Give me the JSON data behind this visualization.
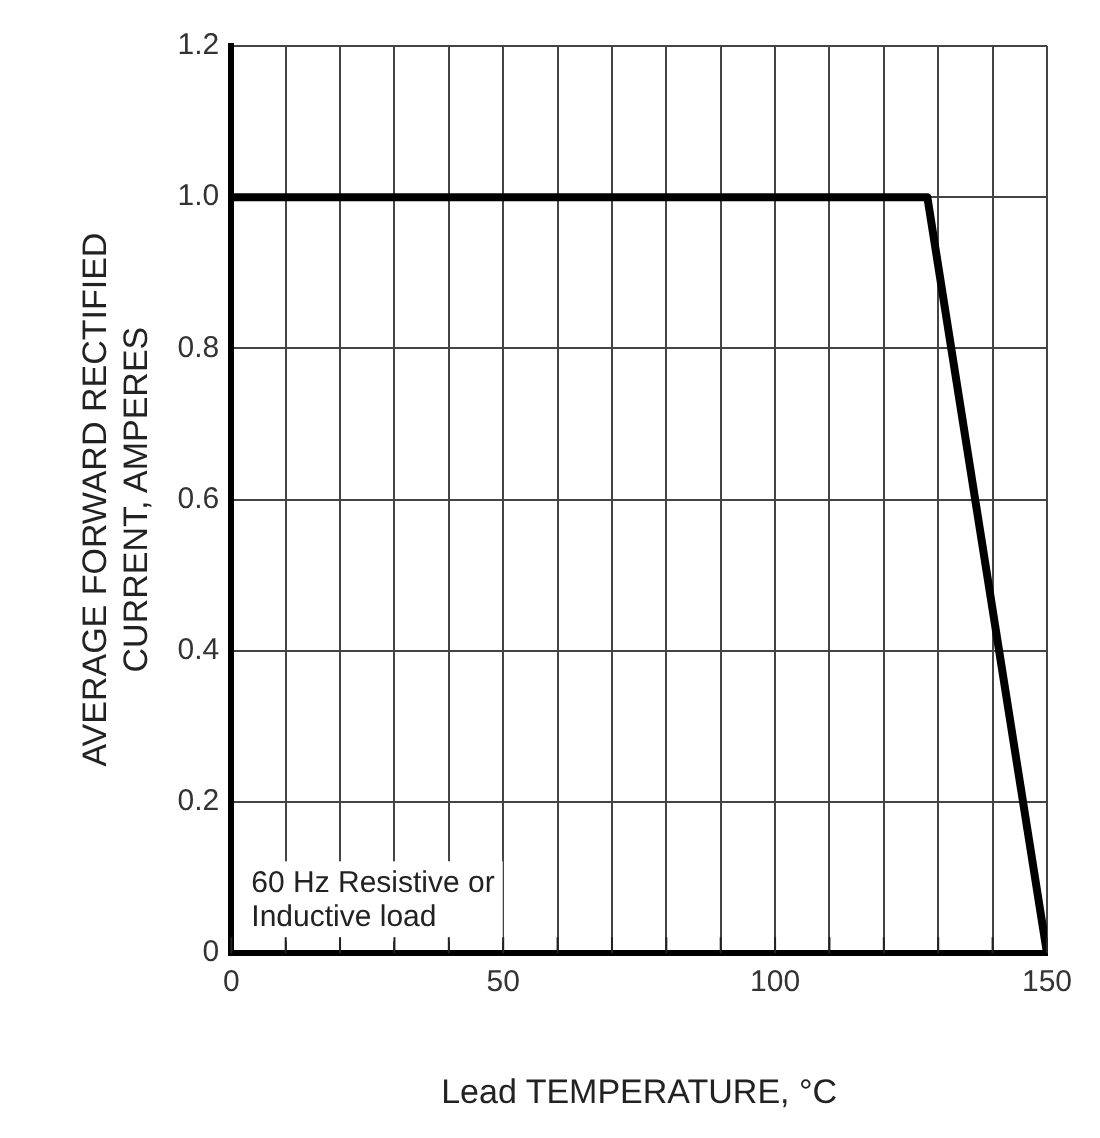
{
  "chart_data": {
    "type": "line",
    "xlabel": "Lead TEMPERATURE, °C",
    "ylabel": "AVERAGE FORWARD RECTIFIED\nCURRENT, AMPERES",
    "x": [
      0,
      128,
      150
    ],
    "series": [
      {
        "color": "#000000",
        "values": [
          1,
          1,
          0
        ]
      }
    ],
    "xlim": [
      0,
      150
    ],
    "ylim": [
      0,
      1.2
    ],
    "xticks": [
      0,
      {
        "value": 10,
        "label": null
      },
      {
        "value": 20,
        "label": null
      },
      {
        "value": 30,
        "label": null
      },
      {
        "value": 40,
        "label": null
      },
      50,
      {
        "value": 60,
        "label": null
      },
      {
        "value": 70,
        "label": null
      },
      {
        "value": 80,
        "label": null
      },
      {
        "value": 90,
        "label": null
      },
      100,
      {
        "value": 110,
        "label": null
      },
      {
        "value": 120,
        "label": null
      },
      {
        "value": 130,
        "label": null
      },
      {
        "value": 140,
        "label": null
      },
      150
    ],
    "yticks": [
      0,
      0.2,
      0.4,
      0.6,
      0.8,
      {
        "value": 1,
        "label": "1.0"
      },
      1.2
    ],
    "grid": true,
    "marker": "none",
    "line_style": "solid",
    "annotations": [
      {
        "text": "60 Hz Resistive or\nInductive load"
      }
    ]
  }
}
